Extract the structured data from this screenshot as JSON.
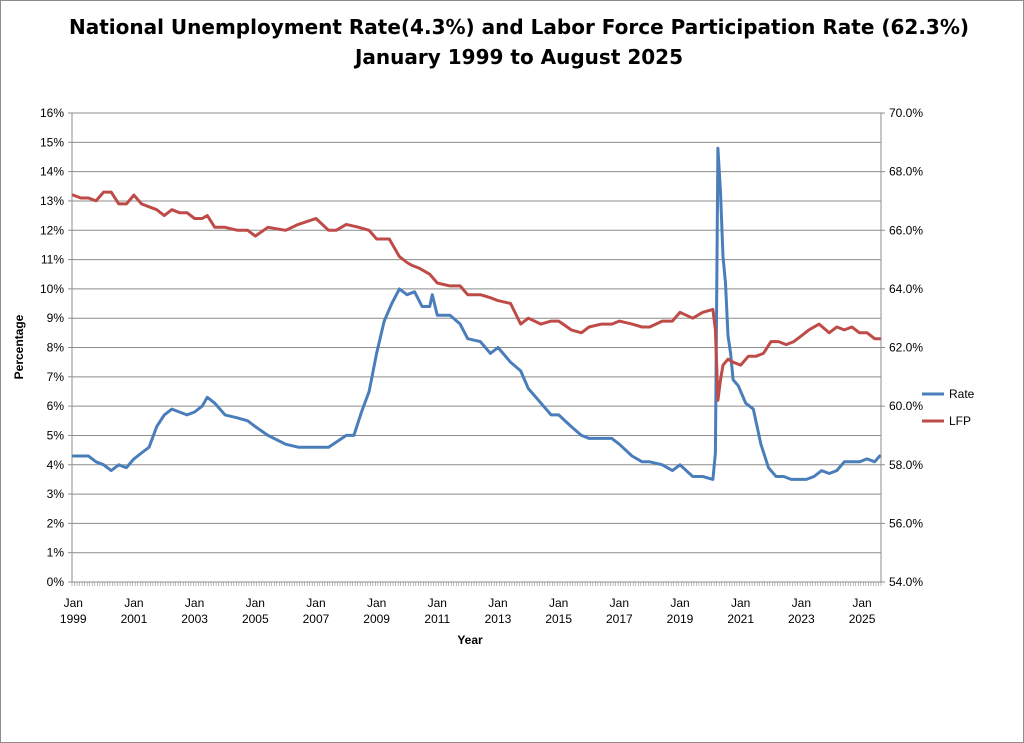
{
  "chart_data": {
    "type": "line",
    "title": "National Unemployment Rate(4.3%) and Labor Force Participation Rate (62.3%)",
    "subtitle": "January 1999 to August 2025",
    "xlabel": "Year",
    "ylabel": "Percentage",
    "y_left": {
      "range": [
        0,
        16
      ],
      "ticks": [
        "0%",
        "1%",
        "2%",
        "3%",
        "4%",
        "5%",
        "6%",
        "7%",
        "8%",
        "9%",
        "10%",
        "11%",
        "12%",
        "13%",
        "14%",
        "15%",
        "16%"
      ]
    },
    "y_right": {
      "range": [
        54,
        70
      ],
      "ticks": [
        "54.0%",
        "56.0%",
        "58.0%",
        "60.0%",
        "62.0%",
        "64.0%",
        "66.0%",
        "68.0%",
        "70.0%"
      ]
    },
    "x_range": [
      "1999-01",
      "2025-08"
    ],
    "x_ticks": [
      {
        "month": "Jan",
        "year": "1999"
      },
      {
        "month": "Jan",
        "year": "2001"
      },
      {
        "month": "Jan",
        "year": "2003"
      },
      {
        "month": "Jan",
        "year": "2005"
      },
      {
        "month": "Jan",
        "year": "2007"
      },
      {
        "month": "Jan",
        "year": "2009"
      },
      {
        "month": "Jan",
        "year": "2011"
      },
      {
        "month": "Jan",
        "year": "2013"
      },
      {
        "month": "Jan",
        "year": "2015"
      },
      {
        "month": "Jan",
        "year": "2017"
      },
      {
        "month": "Jan",
        "year": "2019"
      },
      {
        "month": "Jan",
        "year": "2021"
      },
      {
        "month": "Jan",
        "year": "2023"
      },
      {
        "month": "Jan",
        "year": "2025"
      }
    ],
    "grid": "horizontal",
    "legend_position": "right",
    "series": [
      {
        "name": "Rate",
        "axis": "left",
        "color": "#4a7ebb",
        "points": [
          [
            "1999-01",
            4.3
          ],
          [
            "1999-04",
            4.3
          ],
          [
            "1999-07",
            4.3
          ],
          [
            "1999-10",
            4.1
          ],
          [
            "2000-01",
            4.0
          ],
          [
            "2000-04",
            3.8
          ],
          [
            "2000-07",
            4.0
          ],
          [
            "2000-10",
            3.9
          ],
          [
            "2001-01",
            4.2
          ],
          [
            "2001-04",
            4.4
          ],
          [
            "2001-07",
            4.6
          ],
          [
            "2001-10",
            5.3
          ],
          [
            "2002-01",
            5.7
          ],
          [
            "2002-04",
            5.9
          ],
          [
            "2002-07",
            5.8
          ],
          [
            "2002-10",
            5.7
          ],
          [
            "2003-01",
            5.8
          ],
          [
            "2003-04",
            6.0
          ],
          [
            "2003-06",
            6.3
          ],
          [
            "2003-09",
            6.1
          ],
          [
            "2004-01",
            5.7
          ],
          [
            "2004-06",
            5.6
          ],
          [
            "2004-10",
            5.5
          ],
          [
            "2005-01",
            5.3
          ],
          [
            "2005-06",
            5.0
          ],
          [
            "2006-01",
            4.7
          ],
          [
            "2006-06",
            4.6
          ],
          [
            "2007-01",
            4.6
          ],
          [
            "2007-06",
            4.6
          ],
          [
            "2008-01",
            5.0
          ],
          [
            "2008-04",
            5.0
          ],
          [
            "2008-07",
            5.8
          ],
          [
            "2008-10",
            6.5
          ],
          [
            "2009-01",
            7.8
          ],
          [
            "2009-04",
            8.9
          ],
          [
            "2009-07",
            9.5
          ],
          [
            "2009-10",
            10.0
          ],
          [
            "2010-01",
            9.8
          ],
          [
            "2010-04",
            9.9
          ],
          [
            "2010-07",
            9.4
          ],
          [
            "2010-10",
            9.4
          ],
          [
            "2010-11",
            9.8
          ],
          [
            "2011-01",
            9.1
          ],
          [
            "2011-06",
            9.1
          ],
          [
            "2011-10",
            8.8
          ],
          [
            "2012-01",
            8.3
          ],
          [
            "2012-06",
            8.2
          ],
          [
            "2012-10",
            7.8
          ],
          [
            "2013-01",
            8.0
          ],
          [
            "2013-06",
            7.5
          ],
          [
            "2013-10",
            7.2
          ],
          [
            "2014-01",
            6.6
          ],
          [
            "2014-06",
            6.1
          ],
          [
            "2014-10",
            5.7
          ],
          [
            "2015-01",
            5.7
          ],
          [
            "2015-06",
            5.3
          ],
          [
            "2015-10",
            5.0
          ],
          [
            "2016-01",
            4.9
          ],
          [
            "2016-06",
            4.9
          ],
          [
            "2016-10",
            4.9
          ],
          [
            "2017-01",
            4.7
          ],
          [
            "2017-06",
            4.3
          ],
          [
            "2017-10",
            4.1
          ],
          [
            "2018-01",
            4.1
          ],
          [
            "2018-06",
            4.0
          ],
          [
            "2018-10",
            3.8
          ],
          [
            "2019-01",
            4.0
          ],
          [
            "2019-06",
            3.6
          ],
          [
            "2019-10",
            3.6
          ],
          [
            "2020-02",
            3.5
          ],
          [
            "2020-03",
            4.4
          ],
          [
            "2020-04",
            14.8
          ],
          [
            "2020-05",
            13.3
          ],
          [
            "2020-06",
            11.1
          ],
          [
            "2020-07",
            10.2
          ],
          [
            "2020-08",
            8.4
          ],
          [
            "2020-09",
            7.8
          ],
          [
            "2020-10",
            6.9
          ],
          [
            "2020-12",
            6.7
          ],
          [
            "2021-03",
            6.1
          ],
          [
            "2021-06",
            5.9
          ],
          [
            "2021-09",
            4.7
          ],
          [
            "2021-12",
            3.9
          ],
          [
            "2022-03",
            3.6
          ],
          [
            "2022-06",
            3.6
          ],
          [
            "2022-09",
            3.5
          ],
          [
            "2022-12",
            3.5
          ],
          [
            "2023-03",
            3.5
          ],
          [
            "2023-06",
            3.6
          ],
          [
            "2023-09",
            3.8
          ],
          [
            "2023-12",
            3.7
          ],
          [
            "2024-03",
            3.8
          ],
          [
            "2024-06",
            4.1
          ],
          [
            "2024-09",
            4.1
          ],
          [
            "2024-12",
            4.1
          ],
          [
            "2025-03",
            4.2
          ],
          [
            "2025-06",
            4.1
          ],
          [
            "2025-08",
            4.3
          ]
        ]
      },
      {
        "name": "LFP",
        "axis": "right",
        "color": "#be4b48",
        "points": [
          [
            "1999-01",
            67.2
          ],
          [
            "1999-04",
            67.1
          ],
          [
            "1999-07",
            67.1
          ],
          [
            "1999-10",
            67.0
          ],
          [
            "2000-01",
            67.3
          ],
          [
            "2000-04",
            67.3
          ],
          [
            "2000-07",
            66.9
          ],
          [
            "2000-10",
            66.9
          ],
          [
            "2001-01",
            67.2
          ],
          [
            "2001-04",
            66.9
          ],
          [
            "2001-07",
            66.8
          ],
          [
            "2001-10",
            66.7
          ],
          [
            "2002-01",
            66.5
          ],
          [
            "2002-04",
            66.7
          ],
          [
            "2002-07",
            66.6
          ],
          [
            "2002-10",
            66.6
          ],
          [
            "2003-01",
            66.4
          ],
          [
            "2003-04",
            66.4
          ],
          [
            "2003-06",
            66.5
          ],
          [
            "2003-09",
            66.1
          ],
          [
            "2004-01",
            66.1
          ],
          [
            "2004-06",
            66.0
          ],
          [
            "2004-10",
            66.0
          ],
          [
            "2005-01",
            65.8
          ],
          [
            "2005-06",
            66.1
          ],
          [
            "2006-01",
            66.0
          ],
          [
            "2006-06",
            66.2
          ],
          [
            "2007-01",
            66.4
          ],
          [
            "2007-06",
            66.0
          ],
          [
            "2007-09",
            66.0
          ],
          [
            "2008-01",
            66.2
          ],
          [
            "2008-06",
            66.1
          ],
          [
            "2008-10",
            66.0
          ],
          [
            "2009-01",
            65.7
          ],
          [
            "2009-06",
            65.7
          ],
          [
            "2009-10",
            65.1
          ],
          [
            "2010-01",
            64.9
          ],
          [
            "2010-03",
            64.8
          ],
          [
            "2010-06",
            64.7
          ],
          [
            "2010-10",
            64.5
          ],
          [
            "2011-01",
            64.2
          ],
          [
            "2011-06",
            64.1
          ],
          [
            "2011-10",
            64.1
          ],
          [
            "2012-01",
            63.8
          ],
          [
            "2012-06",
            63.8
          ],
          [
            "2012-10",
            63.7
          ],
          [
            "2013-01",
            63.6
          ],
          [
            "2013-06",
            63.5
          ],
          [
            "2013-10",
            62.8
          ],
          [
            "2014-01",
            63.0
          ],
          [
            "2014-06",
            62.8
          ],
          [
            "2014-10",
            62.9
          ],
          [
            "2015-01",
            62.9
          ],
          [
            "2015-06",
            62.6
          ],
          [
            "2015-10",
            62.5
          ],
          [
            "2016-01",
            62.7
          ],
          [
            "2016-06",
            62.8
          ],
          [
            "2016-10",
            62.8
          ],
          [
            "2017-01",
            62.9
          ],
          [
            "2017-06",
            62.8
          ],
          [
            "2017-10",
            62.7
          ],
          [
            "2018-01",
            62.7
          ],
          [
            "2018-06",
            62.9
          ],
          [
            "2018-10",
            62.9
          ],
          [
            "2019-01",
            63.2
          ],
          [
            "2019-06",
            63.0
          ],
          [
            "2019-10",
            63.2
          ],
          [
            "2020-02",
            63.3
          ],
          [
            "2020-03",
            62.6
          ],
          [
            "2020-04",
            60.2
          ],
          [
            "2020-05",
            60.9
          ],
          [
            "2020-06",
            61.4
          ],
          [
            "2020-07",
            61.5
          ],
          [
            "2020-08",
            61.6
          ],
          [
            "2020-10",
            61.5
          ],
          [
            "2021-01",
            61.4
          ],
          [
            "2021-04",
            61.7
          ],
          [
            "2021-07",
            61.7
          ],
          [
            "2021-10",
            61.8
          ],
          [
            "2022-01",
            62.2
          ],
          [
            "2022-04",
            62.2
          ],
          [
            "2022-07",
            62.1
          ],
          [
            "2022-10",
            62.2
          ],
          [
            "2023-01",
            62.4
          ],
          [
            "2023-04",
            62.6
          ],
          [
            "2023-08",
            62.8
          ],
          [
            "2023-12",
            62.5
          ],
          [
            "2024-03",
            62.7
          ],
          [
            "2024-06",
            62.6
          ],
          [
            "2024-09",
            62.7
          ],
          [
            "2024-12",
            62.5
          ],
          [
            "2025-03",
            62.5
          ],
          [
            "2025-06",
            62.3
          ],
          [
            "2025-08",
            62.3
          ]
        ]
      }
    ]
  }
}
